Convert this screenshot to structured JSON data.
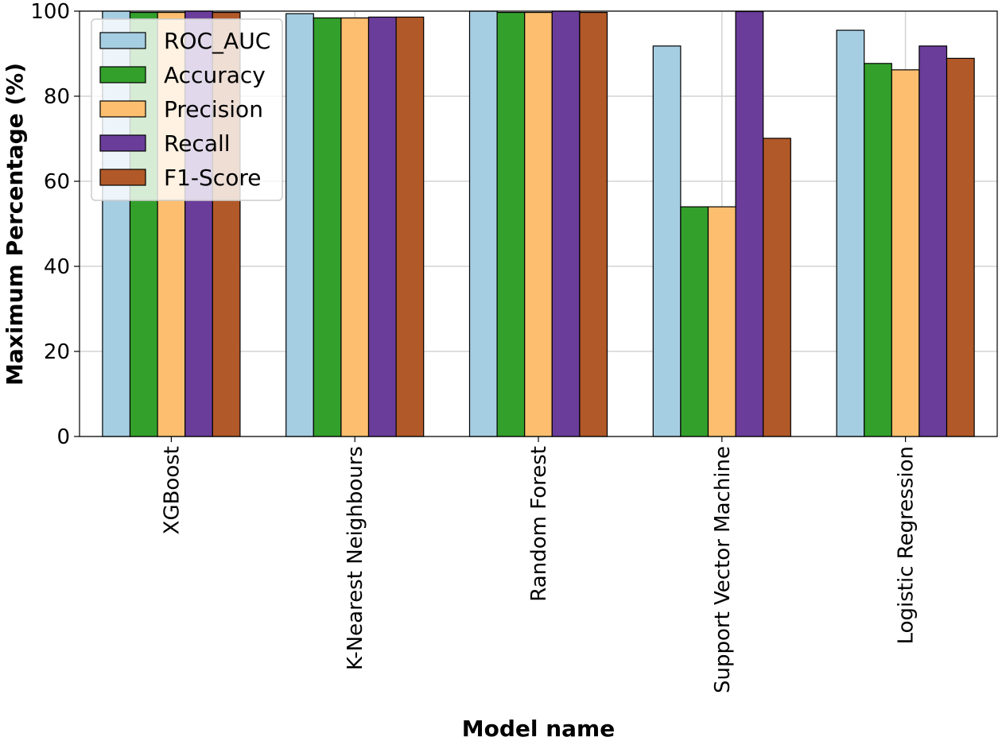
{
  "chart_data": {
    "type": "bar",
    "title": "",
    "xlabel": "Model name",
    "ylabel": "Maximum Percentage (%)",
    "ylim": [
      0,
      100
    ],
    "yticks": [
      0,
      20,
      40,
      60,
      80,
      100
    ],
    "grid": true,
    "legend_position": "top-left",
    "categories": [
      "XGBoost",
      "K-Nearest Neighbours",
      "Random Forest",
      "Support Vector Machine",
      "Logistic Regression"
    ],
    "series": [
      {
        "name": "ROC_AUC",
        "color": "#a6cee3",
        "values": [
          100.0,
          99.4,
          100.0,
          91.8,
          95.5
        ]
      },
      {
        "name": "Accuracy",
        "color": "#33a02c",
        "values": [
          99.7,
          98.4,
          99.7,
          54.0,
          87.7
        ]
      },
      {
        "name": "Precision",
        "color": "#fdbf6f",
        "values": [
          99.7,
          98.4,
          99.7,
          54.0,
          86.2
        ]
      },
      {
        "name": "Recall",
        "color": "#6a3d9a",
        "values": [
          100.0,
          98.6,
          100.0,
          99.9,
          91.8
        ]
      },
      {
        "name": "F1-Score",
        "color": "#b15928",
        "values": [
          99.7,
          98.6,
          99.7,
          70.1,
          88.9
        ]
      }
    ]
  }
}
